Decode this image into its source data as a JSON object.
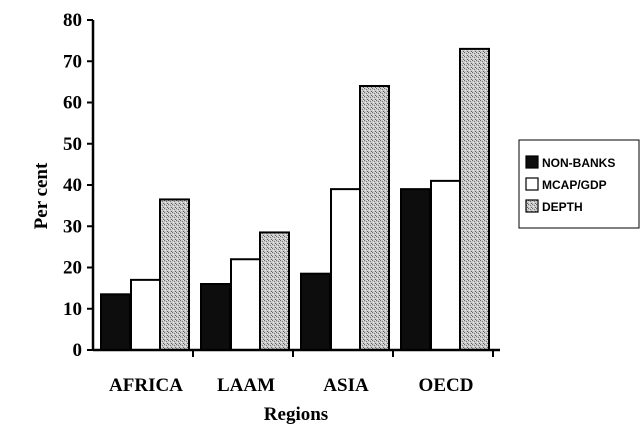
{
  "chart_data": {
    "type": "bar",
    "xlabel": "Regions",
    "ylabel": "Per cent",
    "ylim": [
      0,
      80
    ],
    "yticks": [
      0,
      10,
      20,
      30,
      40,
      50,
      60,
      70,
      80
    ],
    "categories": [
      "AFRICA",
      "LAAM",
      "ASIA",
      "OECD"
    ],
    "series": [
      {
        "name": "NON-BANKS",
        "values": [
          13.5,
          16,
          18.5,
          39
        ],
        "fill": "#0d0d0d"
      },
      {
        "name": "MCAP/GDP",
        "values": [
          17,
          22,
          39,
          41
        ],
        "fill": "#ffffff"
      },
      {
        "name": "DEPTH",
        "values": [
          36.5,
          28.5,
          64,
          73
        ],
        "fill": "url(#stipple)"
      }
    ],
    "legend_position": "right",
    "grid": false
  }
}
